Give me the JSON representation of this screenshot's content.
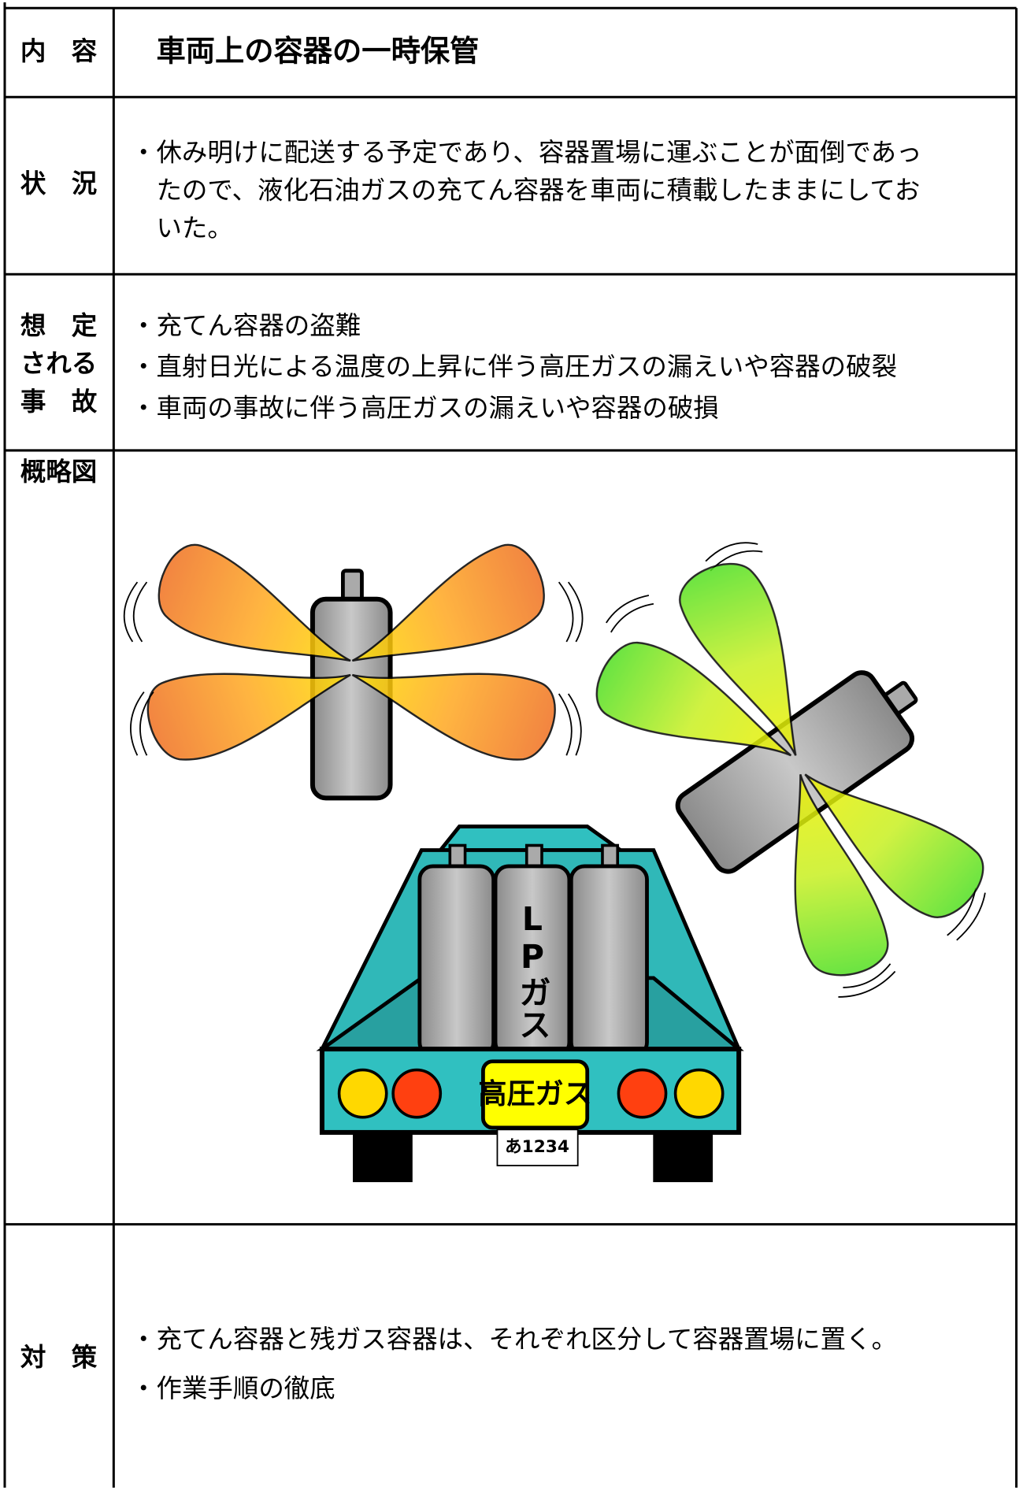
{
  "header": {
    "label": "内　容",
    "title": "車両上の容器の一時保管"
  },
  "situation": {
    "label": "状　況",
    "lines": [
      "・休み明けに配送する予定であり、容器置場に運ぶことが面倒であっ",
      "たので、液化石油ガスの充てん容器を車両に積載したままにしてお",
      "いた。"
    ]
  },
  "assumed_accidents": {
    "label_lines": [
      "想　定",
      "される",
      "事　故"
    ],
    "items": [
      "・充てん容器の盗難",
      "・直射日光による温度の上昇に伴う高圧ガスの漏えいや容器の破裂",
      "・車両の事故に伴う高圧ガスの漏えいや容器の破損"
    ]
  },
  "diagram": {
    "label": "概略図",
    "cylinder_text": "LPガス",
    "plate_sign": "高圧ガス",
    "license_plate": "あ1234"
  },
  "countermeasures": {
    "label": "対　策",
    "items": [
      "・充てん容器と残ガス容器は、それぞれ区分して容器置場に置く。",
      "・作業手順の徹底"
    ]
  }
}
